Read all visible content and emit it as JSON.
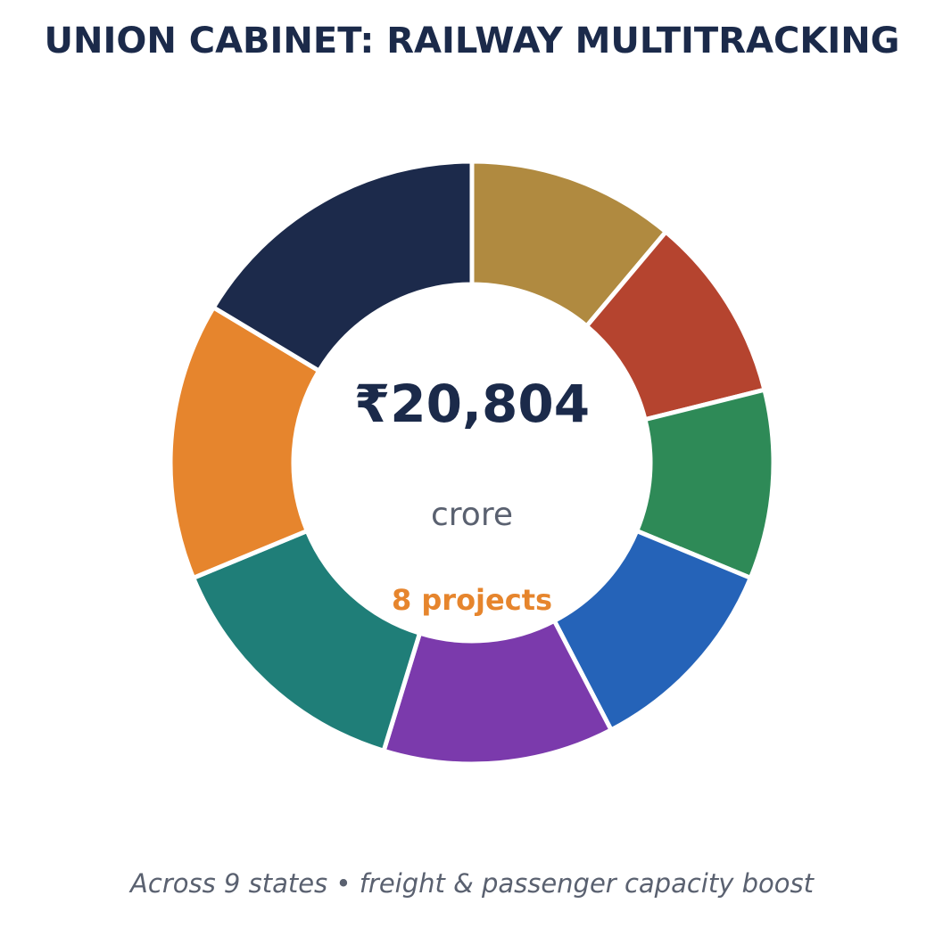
{
  "chart_data": {
    "type": "donut",
    "title": "UNION CABINET: RAILWAY MULTITRACKING",
    "center_value": "₹20,804",
    "center_unit": "crore",
    "center_note": "8 projects",
    "footer": "Across 9 states • freight & passenger capacity boost",
    "values": [
      2312,
      2080,
      2109,
      2312,
      2572,
      2918,
      3092,
      3409
    ],
    "colors": [
      "#b08a40",
      "#b5442f",
      "#2e8a57",
      "#2563b8",
      "#7b3aac",
      "#1f7e78",
      "#e6852d",
      "#1c2a4b"
    ]
  }
}
